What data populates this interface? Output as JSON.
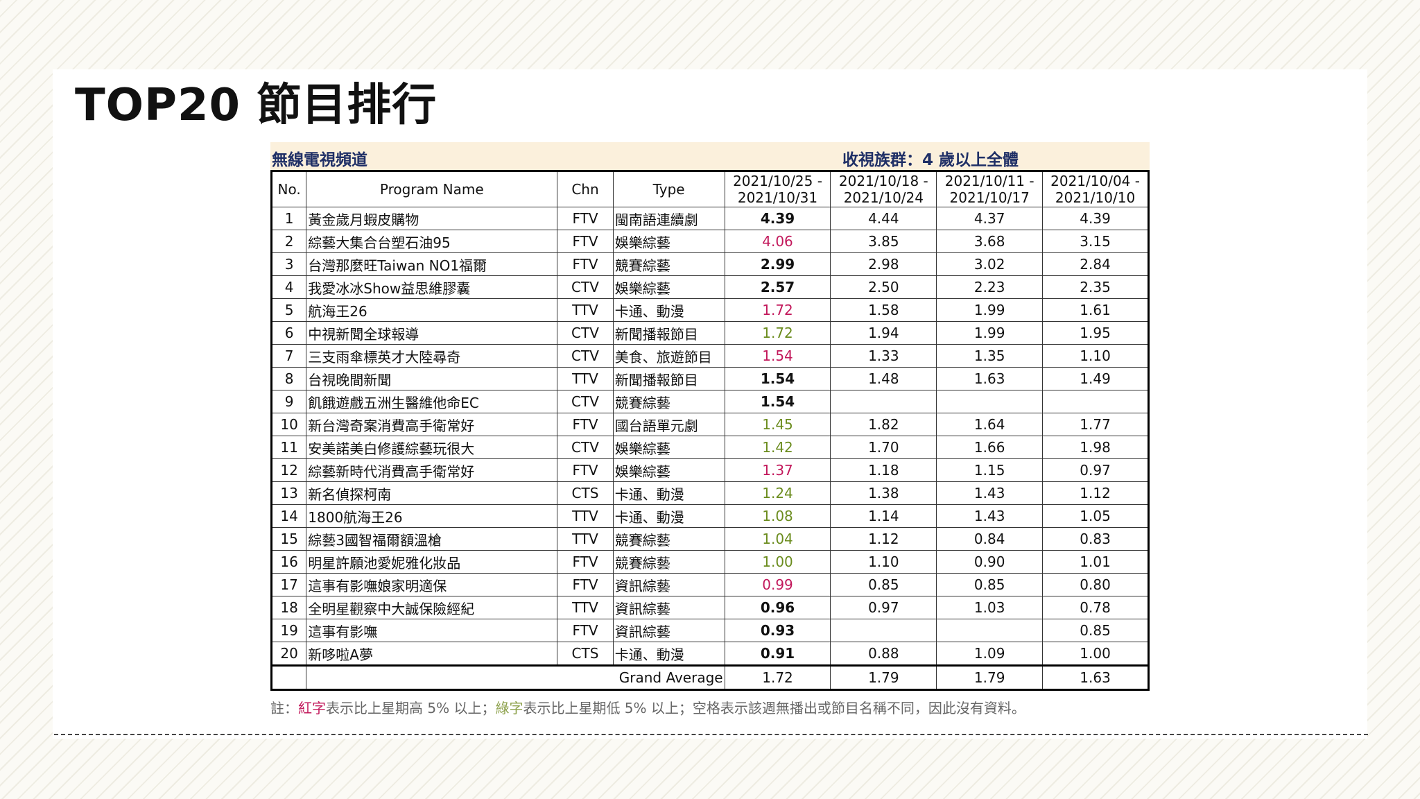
{
  "title": "TOP20 節目排行",
  "header": {
    "left": "無線電視頻道",
    "right": "收視族群：4 歲以上全體"
  },
  "columns": {
    "no": "No.",
    "program": "Program Name",
    "chn": "Chn",
    "type": "Type",
    "weeks": [
      [
        "2021/10/25 -",
        "2021/10/31"
      ],
      [
        "2021/10/18 -",
        "2021/10/24"
      ],
      [
        "2021/10/11 -",
        "2021/10/17"
      ],
      [
        "2021/10/04 -",
        "2021/10/10"
      ]
    ]
  },
  "rows": [
    {
      "no": "1",
      "name": "黃金歲月蝦皮購物",
      "chn": "FTV",
      "type": "閩南語連續劇",
      "w1": "4.39",
      "w1_color": "black",
      "w2": "4.44",
      "w3": "4.37",
      "w4": "4.39"
    },
    {
      "no": "2",
      "name": "綜藝大集合台塑石油95",
      "chn": "FTV",
      "type": "娛樂綜藝",
      "w1": "4.06",
      "w1_color": "red",
      "w2": "3.85",
      "w3": "3.68",
      "w4": "3.15"
    },
    {
      "no": "3",
      "name": "台灣那麼旺Taiwan NO1福爾",
      "chn": "FTV",
      "type": "競賽綜藝",
      "w1": "2.99",
      "w1_color": "black",
      "w2": "2.98",
      "w3": "3.02",
      "w4": "2.84"
    },
    {
      "no": "4",
      "name": "我愛冰冰Show益思維膠囊",
      "chn": "CTV",
      "type": "娛樂綜藝",
      "w1": "2.57",
      "w1_color": "black",
      "w2": "2.50",
      "w3": "2.23",
      "w4": "2.35"
    },
    {
      "no": "5",
      "name": "航海王26",
      "chn": "TTV",
      "type": "卡通、動漫",
      "w1": "1.72",
      "w1_color": "red",
      "w2": "1.58",
      "w3": "1.99",
      "w4": "1.61"
    },
    {
      "no": "6",
      "name": "中視新聞全球報導",
      "chn": "CTV",
      "type": "新聞播報節目",
      "w1": "1.72",
      "w1_color": "green",
      "w2": "1.94",
      "w3": "1.99",
      "w4": "1.95"
    },
    {
      "no": "7",
      "name": "三支雨傘標英才大陸尋奇",
      "chn": "CTV",
      "type": "美食、旅遊節目",
      "w1": "1.54",
      "w1_color": "red",
      "w2": "1.33",
      "w3": "1.35",
      "w4": "1.10"
    },
    {
      "no": "8",
      "name": "台視晚間新聞",
      "chn": "TTV",
      "type": "新聞播報節目",
      "w1": "1.54",
      "w1_color": "black",
      "w2": "1.48",
      "w3": "1.63",
      "w4": "1.49"
    },
    {
      "no": "9",
      "name": "飢餓遊戲五洲生醫維他命EC",
      "chn": "CTV",
      "type": "競賽綜藝",
      "w1": "1.54",
      "w1_color": "black",
      "w2": "",
      "w3": "",
      "w4": ""
    },
    {
      "no": "10",
      "name": "新台灣奇案消費高手衛常好",
      "chn": "FTV",
      "type": "國台語單元劇",
      "w1": "1.45",
      "w1_color": "green",
      "w2": "1.82",
      "w3": "1.64",
      "w4": "1.77"
    },
    {
      "no": "11",
      "name": "安美諾美白修護綜藝玩很大",
      "chn": "CTV",
      "type": "娛樂綜藝",
      "w1": "1.42",
      "w1_color": "green",
      "w2": "1.70",
      "w3": "1.66",
      "w4": "1.98"
    },
    {
      "no": "12",
      "name": "綜藝新時代消費高手衛常好",
      "chn": "FTV",
      "type": "娛樂綜藝",
      "w1": "1.37",
      "w1_color": "red",
      "w2": "1.18",
      "w3": "1.15",
      "w4": "0.97"
    },
    {
      "no": "13",
      "name": "新名偵探柯南",
      "chn": "CTS",
      "type": "卡通、動漫",
      "w1": "1.24",
      "w1_color": "green",
      "w2": "1.38",
      "w3": "1.43",
      "w4": "1.12"
    },
    {
      "no": "14",
      "name": "1800航海王26",
      "chn": "TTV",
      "type": "卡通、動漫",
      "w1": "1.08",
      "w1_color": "green",
      "w2": "1.14",
      "w3": "1.43",
      "w4": "1.05"
    },
    {
      "no": "15",
      "name": "綜藝3國智福爾額溫槍",
      "chn": "TTV",
      "type": "競賽綜藝",
      "w1": "1.04",
      "w1_color": "green",
      "w2": "1.12",
      "w3": "0.84",
      "w4": "0.83"
    },
    {
      "no": "16",
      "name": "明星許願池愛妮雅化妝品",
      "chn": "FTV",
      "type": "競賽綜藝",
      "w1": "1.00",
      "w1_color": "green",
      "w2": "1.10",
      "w3": "0.90",
      "w4": "1.01"
    },
    {
      "no": "17",
      "name": "這事有影嘸娘家明適保",
      "chn": "FTV",
      "type": "資訊綜藝",
      "w1": "0.99",
      "w1_color": "red",
      "w2": "0.85",
      "w3": "0.85",
      "w4": "0.80"
    },
    {
      "no": "18",
      "name": "全明星觀察中大誠保險經紀",
      "chn": "TTV",
      "type": "資訊綜藝",
      "w1": "0.96",
      "w1_color": "black",
      "w2": "0.97",
      "w3": "1.03",
      "w4": "0.78"
    },
    {
      "no": "19",
      "name": "這事有影嘸",
      "chn": "FTV",
      "type": "資訊綜藝",
      "w1": "0.93",
      "w1_color": "black",
      "w2": "",
      "w3": "",
      "w4": "0.85"
    },
    {
      "no": "20",
      "name": "新哆啦A夢",
      "chn": "CTS",
      "type": "卡通、動漫",
      "w1": "0.91",
      "w1_color": "black",
      "w2": "0.88",
      "w3": "1.09",
      "w4": "1.00"
    }
  ],
  "average": {
    "label": "Grand Average",
    "w1": "1.72",
    "w2": "1.79",
    "w3": "1.79",
    "w4": "1.63"
  },
  "note": {
    "prefix": "註：",
    "red_word": "紅字",
    "red_text": "表示比上星期高 5% 以上；",
    "green_word": "綠字",
    "green_text": "表示比上星期低 5% 以上；空格表示該週無播出或節目名稱不同，因此沒有資料。"
  },
  "colors": {
    "red": "#c2185b",
    "green": "#6b8c1e",
    "header_text": "#1f2f66",
    "header_bg": "#fbf0dc"
  }
}
